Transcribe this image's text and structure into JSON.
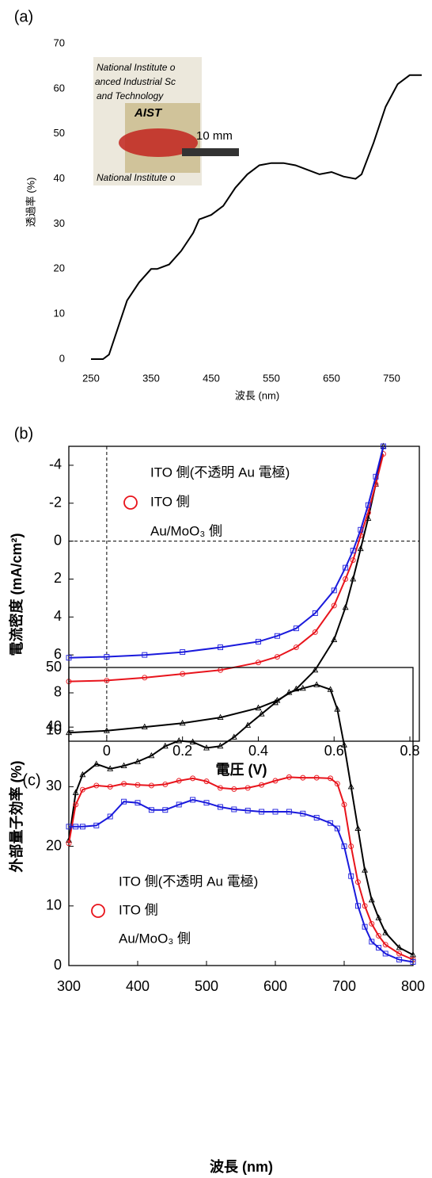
{
  "chart_data": [
    {
      "type": "line",
      "panel": "(a)",
      "x_label": "波長 (nm)",
      "y_label": "透過率 (%)",
      "xlim": [
        250,
        800
      ],
      "xticks": [
        250,
        350,
        450,
        550,
        650,
        750
      ],
      "ylim": [
        0,
        70
      ],
      "yticks": [
        0,
        10,
        20,
        30,
        40,
        50,
        60,
        70
      ],
      "frame": false,
      "annotations": [
        "10 mm"
      ],
      "inset_text": [
        "National Institute o",
        "anced Industrial Sc",
        "and Technology",
        "AIST",
        "National Institute o"
      ],
      "x": [
        250,
        270,
        280,
        290,
        300,
        310,
        330,
        350,
        360,
        370,
        380,
        400,
        420,
        430,
        450,
        470,
        490,
        510,
        530,
        550,
        570,
        590,
        610,
        630,
        650,
        670,
        690,
        700,
        720,
        740,
        760,
        780,
        800
      ],
      "series": [
        {
          "name": "",
          "color": "#000000",
          "marker": "none",
          "values": [
            0,
            0,
            1,
            5,
            9,
            13,
            17,
            20,
            20,
            20.5,
            21,
            24,
            28,
            31,
            32,
            34,
            38,
            41,
            43,
            43.5,
            43.5,
            43,
            42,
            41,
            41.5,
            40.5,
            40,
            41,
            48,
            56,
            61,
            63,
            63
          ]
        }
      ]
    },
    {
      "type": "line",
      "panel": "(b)",
      "x_label": "電圧 (V)",
      "y_label": "電流密度 (mA/cm²)",
      "xlim": [
        -0.1,
        0.825
      ],
      "xticks": [
        0,
        0.2,
        0.4,
        0.6,
        0.8
      ],
      "ylim": [
        -5,
        10.55
      ],
      "yticks": [
        -4,
        -2,
        0,
        2,
        4,
        6,
        8,
        10
      ],
      "y_inverted": true,
      "frame": true,
      "zero_lines": true,
      "legend": "upper left",
      "x": [
        -0.1,
        0,
        0.1,
        0.2,
        0.3,
        0.4,
        0.45,
        0.5,
        0.55,
        0.6,
        0.63,
        0.65,
        0.67,
        0.69,
        0.71,
        0.73
      ],
      "series": [
        {
          "name": "ITO 側(不透明 Au 電極)",
          "color": "#000000",
          "marker": "triangle",
          "legend_marker": false,
          "values": [
            10.1,
            10.0,
            9.8,
            9.6,
            9.3,
            8.8,
            8.4,
            7.8,
            6.8,
            5.2,
            3.5,
            2,
            0.4,
            -1.2,
            -3,
            -5
          ]
        },
        {
          "name": "ITO 側",
          "color": "#e8141c",
          "marker": "circle",
          "legend_marker": true,
          "values": [
            7.4,
            7.35,
            7.2,
            7.0,
            6.8,
            6.4,
            6.1,
            5.6,
            4.8,
            3.4,
            2.0,
            1.0,
            -0.3,
            -1.5,
            -3,
            -4.6
          ]
        },
        {
          "name": "Au/MoO₃ 側",
          "color": "#1a1adc",
          "marker": "square",
          "legend_marker": false,
          "values": [
            6.15,
            6.1,
            6.0,
            5.85,
            5.6,
            5.3,
            5.0,
            4.6,
            3.8,
            2.6,
            1.4,
            0.5,
            -0.6,
            -1.9,
            -3.4,
            -5
          ]
        }
      ]
    },
    {
      "type": "line",
      "panel": "(c)",
      "x_label": "波長 (nm)",
      "y_label": "外部量子効率 (%)",
      "xlim": [
        300,
        800
      ],
      "xticks": [
        300,
        400,
        500,
        600,
        700,
        800
      ],
      "ylim": [
        0,
        50
      ],
      "yticks": [
        0,
        10,
        20,
        30,
        40,
        50
      ],
      "frame": true,
      "legend": "lower left",
      "x": [
        300,
        310,
        320,
        340,
        360,
        380,
        400,
        420,
        440,
        460,
        480,
        500,
        520,
        540,
        560,
        580,
        600,
        620,
        640,
        660,
        680,
        690,
        700,
        710,
        720,
        730,
        740,
        750,
        760,
        780,
        800
      ],
      "series": [
        {
          "name": "ITO 側(不透明 Au 電極)",
          "color": "#000000",
          "marker": "triangle",
          "legend_marker": false,
          "values": [
            21,
            29,
            32,
            33.8,
            33,
            33.5,
            34.2,
            35.2,
            36.8,
            37.7,
            37.5,
            36.5,
            36.8,
            38.3,
            40.3,
            42.2,
            44.1,
            45.8,
            46.5,
            47.1,
            46.3,
            43,
            37,
            30,
            23,
            16,
            11,
            8,
            5.5,
            3,
            1.8
          ]
        },
        {
          "name": "ITO 側",
          "color": "#e8141c",
          "marker": "circle",
          "legend_marker": true,
          "values": [
            20.5,
            27,
            29.5,
            30.2,
            30,
            30.5,
            30.3,
            30.2,
            30.4,
            31,
            31.4,
            30.9,
            29.8,
            29.6,
            29.8,
            30.3,
            31,
            31.6,
            31.5,
            31.5,
            31.4,
            30.5,
            27,
            20,
            14,
            10,
            7,
            5,
            3.5,
            2,
            1
          ]
        },
        {
          "name": "Au/MoO₃ 側",
          "color": "#1a1adc",
          "marker": "square",
          "legend_marker": false,
          "values": [
            23.3,
            23.3,
            23.3,
            23.5,
            25,
            27.5,
            27.3,
            26.1,
            26.1,
            27,
            27.8,
            27.3,
            26.6,
            26.2,
            26,
            25.8,
            25.8,
            25.8,
            25.5,
            24.8,
            23.9,
            23,
            20,
            15,
            10,
            6.5,
            4,
            3,
            2,
            1,
            0.6
          ]
        }
      ]
    }
  ]
}
